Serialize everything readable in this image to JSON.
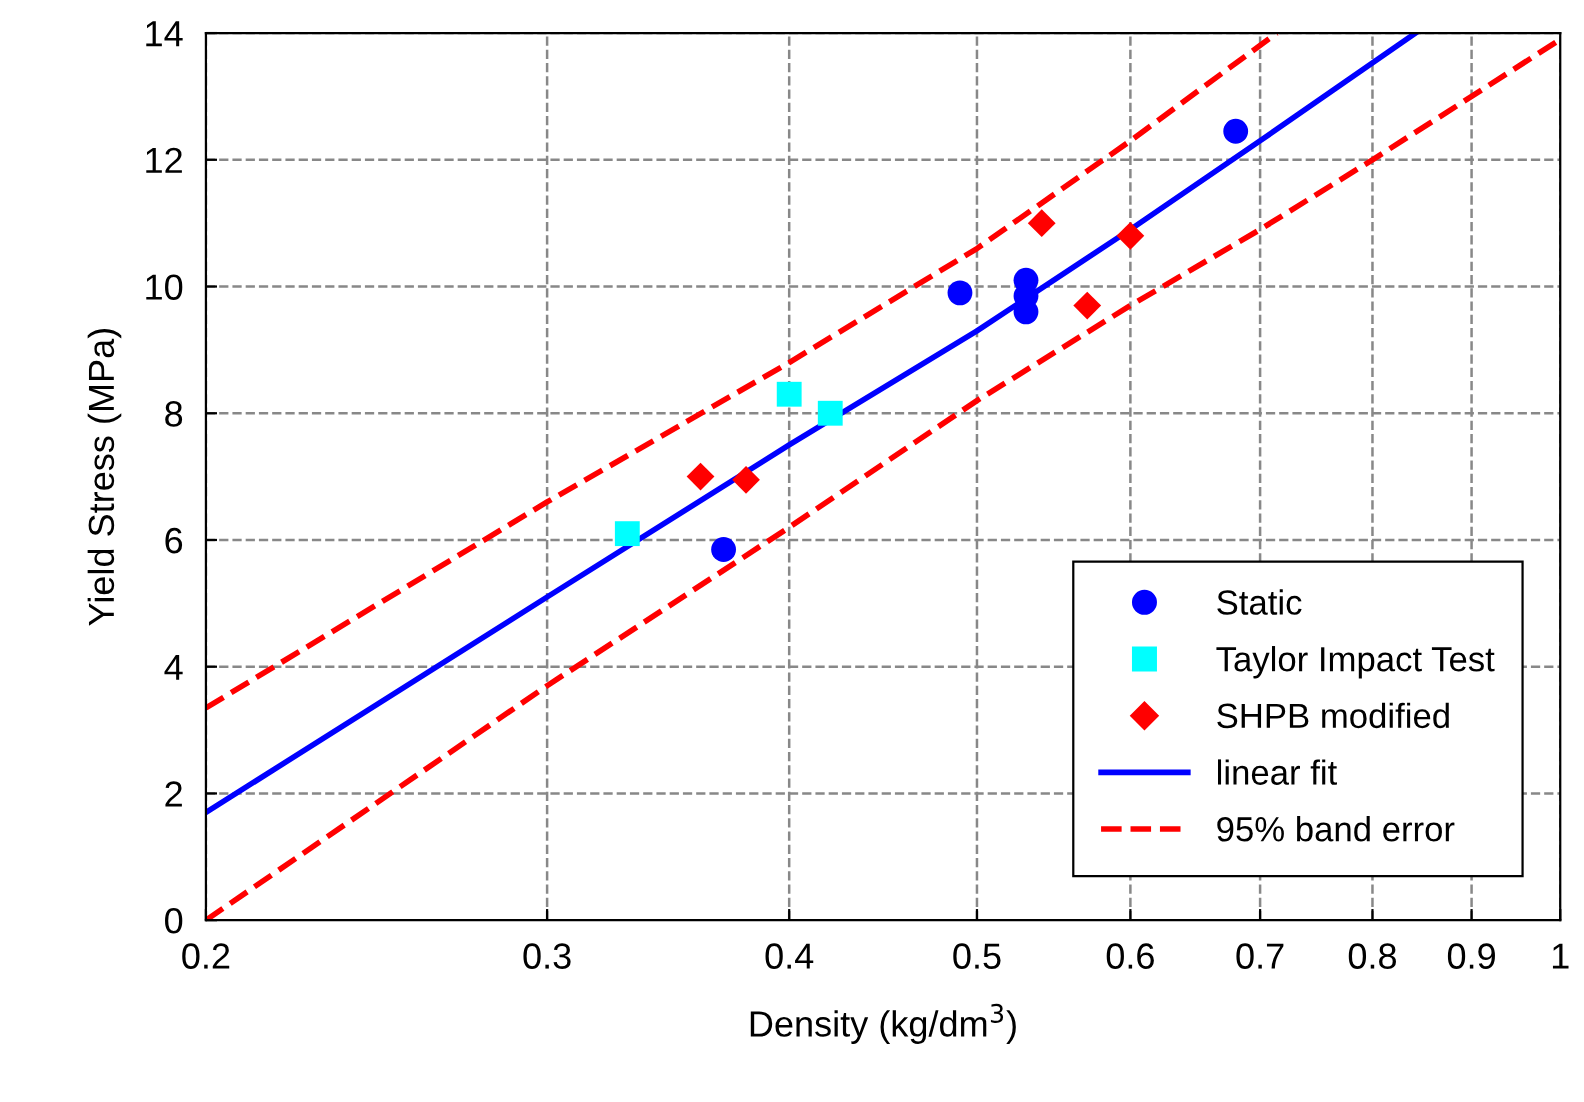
{
  "chart_data": {
    "type": "scatter",
    "xlabel": "Density (kg/dm$^{3}$)",
    "ylabel": "Yield Stress (MPa)",
    "log": "x",
    "xlim": [
      0.2,
      1
    ],
    "xticks": [
      0.2,
      0.3,
      0.4,
      0.5,
      0.6,
      0.7,
      0.8,
      0.9,
      {
        "value": 1,
        "label": "1"
      }
    ],
    "ylim": [
      0,
      14
    ],
    "yticks": [
      0,
      2,
      4,
      6,
      8,
      10,
      12,
      14
    ],
    "grid": true,
    "legend": "bottom right",
    "series": [
      {
        "name": "Static",
        "marker": "circle",
        "color": "#0000ff",
        "x": [
          0.37,
          0.49,
          0.53,
          0.53,
          0.53,
          0.68
        ],
        "values": [
          5.85,
          9.9,
          10.1,
          9.85,
          9.6,
          12.45
        ]
      },
      {
        "name": "Taylor Impact Test",
        "marker": "square",
        "color": "#00ffff",
        "x": [
          0.33,
          0.4,
          0.42
        ],
        "values": [
          6.1,
          8.3,
          8.0
        ]
      },
      {
        "name": "SHPB modified",
        "marker": "diamond",
        "color": "#ff0000",
        "x": [
          0.36,
          0.38,
          0.54,
          0.57,
          0.6
        ],
        "values": [
          7.0,
          6.95,
          11.0,
          9.7,
          10.8
        ]
      },
      {
        "name": "linear fit",
        "type": "line",
        "marker": "none",
        "line_style": "solid",
        "color": "#0000ff",
        "x": [
          0.2,
          0.3,
          0.4,
          0.5,
          0.6,
          0.7,
          0.842
        ],
        "values": [
          1.7,
          5.1,
          7.5,
          9.3,
          10.9,
          12.3,
          14.0
        ]
      },
      {
        "name": "95% band error",
        "type": "line",
        "marker": "none",
        "line_style": "dashed",
        "color": "#ff0000",
        "x": [
          0.2,
          0.3,
          0.4,
          0.5,
          0.6,
          0.714
        ],
        "values": [
          3.35,
          6.6,
          8.8,
          10.6,
          12.3,
          14.0
        ]
      },
      {
        "type": "line",
        "marker": "none",
        "line_style": "dashed",
        "color": "#ff0000",
        "x": [
          0.2,
          0.3,
          0.4,
          0.5,
          0.6,
          0.7,
          0.8,
          0.9,
          1.0
        ],
        "values": [
          0.0,
          3.7,
          6.2,
          8.2,
          9.7,
          10.9,
          12.0,
          13.0,
          13.9
        ]
      }
    ]
  }
}
